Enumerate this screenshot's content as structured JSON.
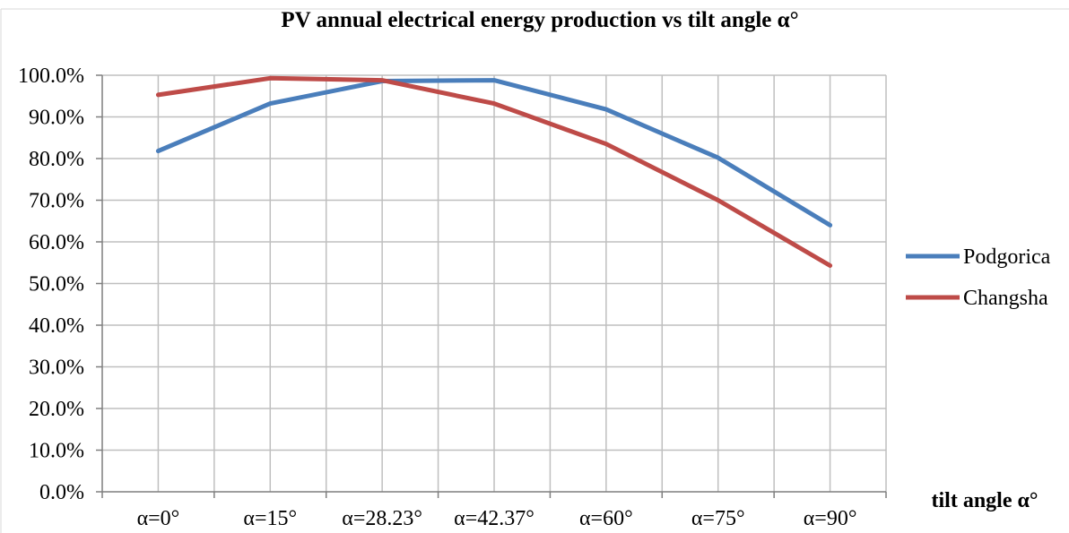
{
  "chart_data": {
    "type": "line",
    "title": "PV annual electrical energy production vs tilt angle  α°",
    "xlabel": "tilt angle α°",
    "ylabel": "",
    "categories": [
      "α=0°",
      "α=15°",
      "α=28.23°",
      "α=42.37°",
      "α=60°",
      "α=75°",
      "α=90°"
    ],
    "ylim": [
      0,
      100
    ],
    "yticks": [
      0,
      10,
      20,
      30,
      40,
      50,
      60,
      70,
      80,
      90,
      100
    ],
    "ytick_labels": [
      "0.0%",
      "10.0%",
      "20.0%",
      "30.0%",
      "40.0%",
      "50.0%",
      "60.0%",
      "70.0%",
      "80.0%",
      "90.0%",
      "100.0%"
    ],
    "grid": true,
    "legend_position": "right",
    "series": [
      {
        "name": "Podgorica",
        "color": "#4a7ebb",
        "values": [
          81.8,
          93.2,
          98.6,
          98.8,
          91.8,
          80.2,
          64.0
        ]
      },
      {
        "name": "Changsha",
        "color": "#be4b48",
        "values": [
          95.3,
          99.3,
          98.8,
          93.2,
          83.5,
          70.0,
          54.3
        ]
      }
    ]
  }
}
